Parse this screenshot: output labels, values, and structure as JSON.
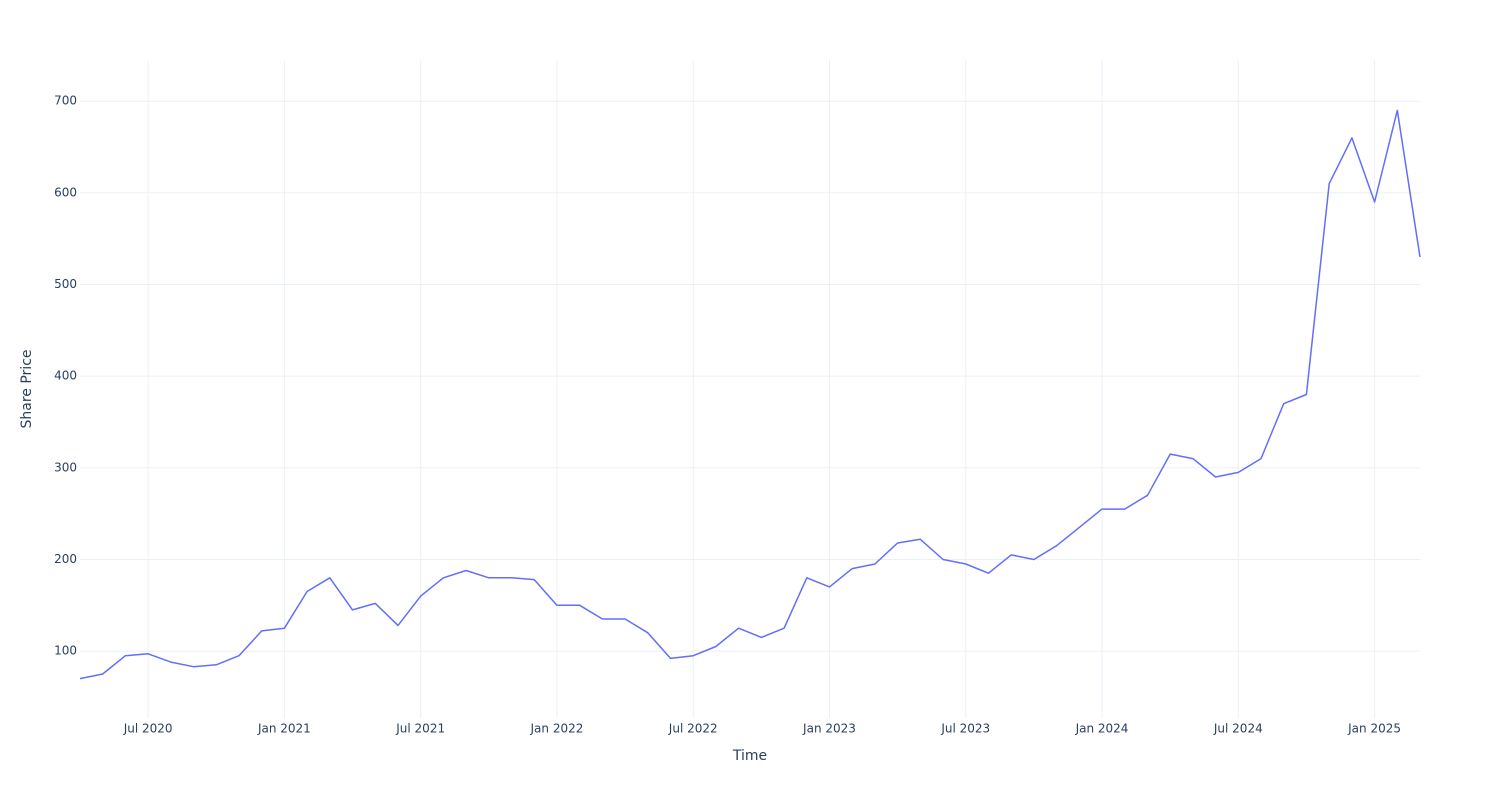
{
  "chart_data": {
    "type": "line",
    "x_label": "Time",
    "y_label": "Share Price",
    "x": [
      "2020-04",
      "2020-05",
      "2020-06",
      "2020-07",
      "2020-08",
      "2020-09",
      "2020-10",
      "2020-11",
      "2020-12",
      "2021-01",
      "2021-02",
      "2021-03",
      "2021-04",
      "2021-05",
      "2021-06",
      "2021-07",
      "2021-08",
      "2021-09",
      "2021-10",
      "2021-11",
      "2021-12",
      "2022-01",
      "2022-02",
      "2022-03",
      "2022-04",
      "2022-05",
      "2022-06",
      "2022-07",
      "2022-08",
      "2022-09",
      "2022-10",
      "2022-11",
      "2022-12",
      "2023-01",
      "2023-02",
      "2023-03",
      "2023-04",
      "2023-05",
      "2023-06",
      "2023-07",
      "2023-08",
      "2023-09",
      "2023-10",
      "2023-11",
      "2023-12",
      "2024-01",
      "2024-02",
      "2024-03",
      "2024-04",
      "2024-05",
      "2024-06",
      "2024-07",
      "2024-08",
      "2024-09",
      "2024-10",
      "2024-11",
      "2024-12",
      "2025-01",
      "2025-02",
      "2025-03"
    ],
    "series": [
      {
        "color": "#636efa",
        "values": [
          70,
          75,
          95,
          97,
          88,
          83,
          85,
          95,
          122,
          125,
          165,
          180,
          145,
          152,
          128,
          160,
          180,
          188,
          180,
          180,
          178,
          150,
          150,
          135,
          135,
          120,
          92,
          95,
          105,
          125,
          115,
          125,
          180,
          170,
          190,
          195,
          218,
          222,
          200,
          195,
          185,
          205,
          200,
          215,
          235,
          255,
          255,
          270,
          315,
          310,
          290,
          295,
          310,
          370,
          380,
          610,
          660,
          590,
          690,
          530
        ]
      }
    ],
    "xlim": [
      "2020-04",
      "2025-03"
    ],
    "xticks": [
      {
        "value": "2020-07",
        "label": "Jul 2020"
      },
      {
        "value": "2021-01",
        "label": "Jan 2021"
      },
      {
        "value": "2021-07",
        "label": "Jul 2021"
      },
      {
        "value": "2022-01",
        "label": "Jan 2022"
      },
      {
        "value": "2022-07",
        "label": "Jul 2022"
      },
      {
        "value": "2023-01",
        "label": "Jan 2023"
      },
      {
        "value": "2023-07",
        "label": "Jul 2023"
      },
      {
        "value": "2024-01",
        "label": "Jan 2024"
      },
      {
        "value": "2024-07",
        "label": "Jul 2024"
      },
      {
        "value": "2025-01",
        "label": "Jan 2025"
      }
    ],
    "ylim": [
      27,
      745
    ],
    "yticks": [
      100,
      200,
      300,
      400,
      500,
      600,
      700
    ],
    "grid": true
  }
}
